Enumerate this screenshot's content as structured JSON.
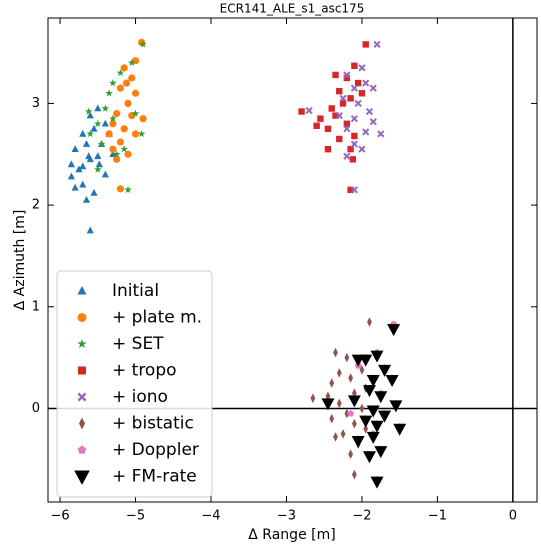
{
  "chart_data": {
    "type": "scatter",
    "title": "ECR141_ALE_s1_asc175",
    "xlabel": "Δ Range [m]",
    "ylabel": "Δ Azimuth [m]",
    "xlim": [
      -6.16,
      0.32
    ],
    "ylim": [
      -0.92,
      3.84
    ],
    "xticks": [
      {
        "value": -6,
        "label": "−6"
      },
      {
        "value": -5,
        "label": "−5"
      },
      {
        "value": -4,
        "label": "−4"
      },
      {
        "value": -3,
        "label": "−3"
      },
      {
        "value": -2,
        "label": "−2"
      },
      {
        "value": -1,
        "label": "−1"
      },
      0
    ],
    "yticks": [
      0,
      1,
      2,
      3
    ],
    "axhline": 0,
    "axvline": 0,
    "legend": "lower left",
    "series": [
      {
        "name": "Initial",
        "color": "#1f77b4",
        "marker": "triangle-up",
        "x": [
          -5.6,
          -5.65,
          -5.7,
          -5.8,
          -5.55,
          -5.4,
          -5.75,
          -5.85,
          -5.6,
          -5.5,
          -5.8,
          -5.65,
          -5.45,
          -5.7,
          -5.55,
          -5.4,
          -5.6,
          -5.5,
          -5.35,
          -5.3,
          -5.85,
          -5.62,
          -5.48,
          -5.7
        ],
        "y": [
          1.75,
          2.05,
          2.2,
          2.17,
          2.12,
          2.3,
          2.35,
          2.4,
          2.45,
          2.48,
          2.55,
          2.6,
          2.6,
          2.7,
          2.75,
          2.8,
          2.88,
          2.95,
          2.7,
          2.5,
          2.28,
          2.48,
          2.4,
          2.38
        ]
      },
      {
        "name": "+ plate m.",
        "color": "#ff7f0e",
        "marker": "circle",
        "x": [
          -4.92,
          -5.0,
          -5.15,
          -5.05,
          -5.2,
          -5.0,
          -5.1,
          -4.9,
          -5.25,
          -5.05,
          -5.3,
          -5.15,
          -5.0,
          -5.2,
          -5.3,
          -5.25,
          -5.2,
          -5.1,
          -5.35,
          -5.12
        ],
        "y": [
          3.6,
          3.42,
          3.35,
          3.25,
          3.15,
          3.1,
          3.0,
          2.85,
          2.9,
          2.88,
          2.8,
          2.75,
          2.7,
          2.62,
          2.55,
          2.45,
          2.16,
          2.5,
          2.7,
          3.2
        ]
      },
      {
        "name": "+ SET",
        "color": "#2ca02c",
        "marker": "star",
        "x": [
          -4.9,
          -5.05,
          -5.2,
          -5.35,
          -5.4,
          -5.5,
          -5.3,
          -5.6,
          -5.45,
          -5.25,
          -5.1,
          -5.5,
          -4.92,
          -5.0,
          -5.3,
          -5.62,
          -5.15
        ],
        "y": [
          3.58,
          3.4,
          3.3,
          3.1,
          2.95,
          2.8,
          2.85,
          2.7,
          2.6,
          2.5,
          2.15,
          2.35,
          2.7,
          2.9,
          3.2,
          2.92,
          2.55
        ]
      },
      {
        "name": "+ tropo",
        "color": "#d62728",
        "marker": "square",
        "x": [
          -1.95,
          -2.1,
          -2.35,
          -2.2,
          -2.05,
          -2.3,
          -2.15,
          -2.25,
          -2.0,
          -2.4,
          -2.8,
          -2.55,
          -2.45,
          -2.2,
          -2.1,
          -2.3,
          -2.15,
          -2.45,
          -2.12,
          -2.15,
          -2.6,
          -2.35
        ],
        "y": [
          3.58,
          3.37,
          3.28,
          3.25,
          3.2,
          3.12,
          3.05,
          3.0,
          3.1,
          2.95,
          2.92,
          2.85,
          2.75,
          2.8,
          2.68,
          2.65,
          2.55,
          2.55,
          2.45,
          2.15,
          2.78,
          2.88
        ]
      },
      {
        "name": "+ iono",
        "color": "#9467bd",
        "marker": "x",
        "x": [
          -1.8,
          -2.0,
          -2.2,
          -1.95,
          -2.1,
          -1.85,
          -2.25,
          -2.05,
          -1.9,
          -2.3,
          -2.1,
          -1.85,
          -2.2,
          -1.95,
          -1.75,
          -2.1,
          -2.0,
          -2.2,
          -2.1,
          -2.7
        ],
        "y": [
          3.58,
          3.35,
          3.28,
          3.2,
          3.15,
          3.15,
          3.05,
          3.0,
          2.92,
          2.88,
          2.85,
          2.82,
          2.75,
          2.72,
          2.7,
          2.6,
          2.55,
          2.48,
          2.15,
          2.93
        ]
      },
      {
        "name": "+ bistatic",
        "color": "#8c564b",
        "marker": "thin-diamond",
        "x": [
          -1.9,
          -2.35,
          -2.2,
          -2.05,
          -2.3,
          -2.15,
          -2.4,
          -1.95,
          -2.1,
          -2.65,
          -2.3,
          -2.0,
          -2.2,
          -2.4,
          -2.1,
          -1.95,
          -2.25,
          -2.35,
          -2.05,
          -2.15,
          -2.1,
          -2.45,
          -2.0
        ],
        "y": [
          0.85,
          0.55,
          0.5,
          0.45,
          0.35,
          0.3,
          0.25,
          0.2,
          0.15,
          0.1,
          0.05,
          0.0,
          -0.05,
          -0.1,
          -0.15,
          -0.2,
          -0.25,
          -0.28,
          -0.35,
          -0.45,
          -0.65,
          0.12,
          0.38
        ]
      },
      {
        "name": "+ Doppler",
        "color": "#e377c2",
        "marker": "pentagon",
        "x": [
          -1.58,
          -1.8,
          -1.95,
          -2.05,
          -1.7,
          -1.85,
          -1.6,
          -1.9,
          -1.75,
          -2.1,
          -1.55,
          -1.85,
          -1.7,
          -1.95,
          -1.8,
          -1.5,
          -1.85,
          -2.05,
          -1.75,
          -1.9,
          -1.8,
          -2.15
        ],
        "y": [
          0.83,
          0.55,
          0.5,
          0.42,
          0.4,
          0.3,
          0.3,
          0.2,
          0.15,
          0.1,
          0.05,
          0.0,
          -0.05,
          -0.1,
          -0.15,
          -0.18,
          -0.25,
          -0.3,
          -0.4,
          -0.45,
          -0.7,
          -0.05
        ]
      },
      {
        "name": "+ FM-rate",
        "color": "#000000",
        "marker": "triangle-down",
        "x": [
          -1.58,
          -1.8,
          -1.95,
          -2.05,
          -1.7,
          -1.85,
          -1.6,
          -1.9,
          -1.75,
          -2.1,
          -1.55,
          -1.85,
          -1.7,
          -1.95,
          -1.8,
          -1.5,
          -1.85,
          -2.05,
          -1.75,
          -1.9,
          -1.8,
          -2.45
        ],
        "y": [
          0.78,
          0.52,
          0.48,
          0.48,
          0.38,
          0.28,
          0.28,
          0.18,
          0.12,
          0.08,
          0.03,
          -0.02,
          -0.07,
          -0.12,
          -0.17,
          -0.2,
          -0.28,
          -0.32,
          -0.42,
          -0.47,
          -0.72,
          0.05
        ]
      }
    ]
  }
}
